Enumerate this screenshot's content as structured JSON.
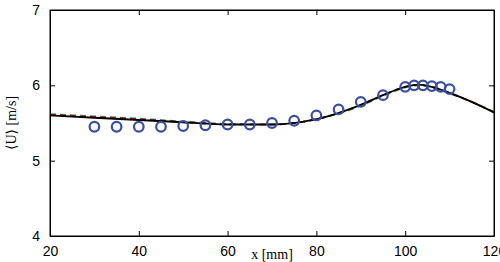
{
  "chart_data": {
    "type": "line",
    "x_label": "x [mm]",
    "y_label": "⟨U⟩ [m/s]",
    "xlim": [
      20,
      120
    ],
    "xticks": [
      20,
      40,
      60,
      80,
      100,
      120
    ],
    "ylim": [
      4,
      7
    ],
    "yticks": [
      4,
      5,
      6,
      7
    ],
    "grid": false,
    "series": [
      {
        "type": "line",
        "color": "#2e8b57",
        "line_style": "dashed",
        "x": [
          20,
          30,
          40,
          50,
          60,
          70,
          80,
          90,
          95,
          100,
          103,
          106,
          110,
          115,
          120
        ],
        "values": [
          5.62,
          5.59,
          5.56,
          5.52,
          5.49,
          5.48,
          5.55,
          5.73,
          5.86,
          5.97,
          6.0,
          5.97,
          5.89,
          5.78,
          5.65
        ]
      },
      {
        "type": "line",
        "color": "#cc0000",
        "line_style": "dashed",
        "x": [
          20,
          30,
          40,
          50,
          60,
          70,
          80,
          90,
          95,
          100,
          103,
          106,
          110,
          115,
          120
        ],
        "values": [
          5.61,
          5.58,
          5.55,
          5.51,
          5.48,
          5.48,
          5.55,
          5.74,
          5.87,
          5.98,
          6.01,
          5.98,
          5.9,
          5.78,
          5.64
        ]
      },
      {
        "type": "line",
        "color": "#000000",
        "line_style": "solid",
        "x": [
          20,
          30,
          40,
          50,
          60,
          70,
          80,
          90,
          95,
          100,
          103,
          106,
          110,
          115,
          120
        ],
        "values": [
          5.6,
          5.57,
          5.54,
          5.51,
          5.48,
          5.48,
          5.55,
          5.74,
          5.87,
          5.98,
          6.01,
          5.98,
          5.9,
          5.78,
          5.64
        ]
      },
      {
        "type": "scatter",
        "color": "#3a4fa0",
        "marker": "circle",
        "x": [
          30,
          35,
          40,
          45,
          50,
          55,
          60,
          65,
          70,
          75,
          80,
          85,
          90,
          95,
          100,
          102,
          104,
          106,
          108,
          110
        ],
        "values": [
          5.45,
          5.45,
          5.45,
          5.45,
          5.46,
          5.47,
          5.48,
          5.48,
          5.5,
          5.53,
          5.6,
          5.68,
          5.78,
          5.87,
          5.98,
          6.0,
          6.0,
          5.99,
          5.98,
          5.95
        ]
      }
    ]
  }
}
